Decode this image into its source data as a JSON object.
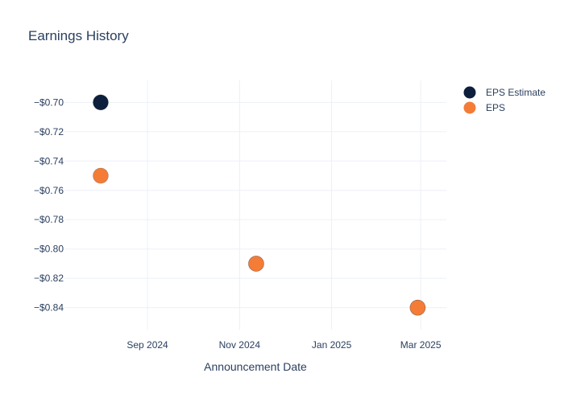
{
  "chart_data": {
    "type": "scatter",
    "title": "Earnings History",
    "xlabel": "Announcement Date",
    "ylabel": "",
    "x_ticks": [
      "Sep 2024",
      "Nov 2024",
      "Jan 2025",
      "Mar 2025"
    ],
    "x_tick_dates": [
      "2024-09-01",
      "2024-11-01",
      "2025-01-01",
      "2025-03-01"
    ],
    "xlim": [
      "2024-07-08",
      "2025-03-18"
    ],
    "y_ticks": [
      "−$0.70",
      "−$0.72",
      "−$0.74",
      "−$0.76",
      "−$0.78",
      "−$0.80",
      "−$0.82",
      "−$0.84"
    ],
    "y_tick_values": [
      -0.7,
      -0.72,
      -0.74,
      -0.76,
      -0.78,
      -0.8,
      -0.82,
      -0.84
    ],
    "ylim": [
      -0.855,
      -0.685
    ],
    "grid": true,
    "legend_position": "top-right",
    "series": [
      {
        "name": "EPS Estimate",
        "color": "#0d1f3c",
        "points": [
          {
            "x": "2024-08-01",
            "y": -0.7
          },
          {
            "x": "2024-11-12",
            "y": -0.81
          },
          {
            "x": "2025-02-27",
            "y": -0.84
          }
        ]
      },
      {
        "name": "EPS",
        "color": "#f47c37",
        "points": [
          {
            "x": "2024-08-01",
            "y": -0.75
          },
          {
            "x": "2024-11-12",
            "y": -0.81
          },
          {
            "x": "2025-02-27",
            "y": -0.84
          }
        ]
      }
    ]
  }
}
